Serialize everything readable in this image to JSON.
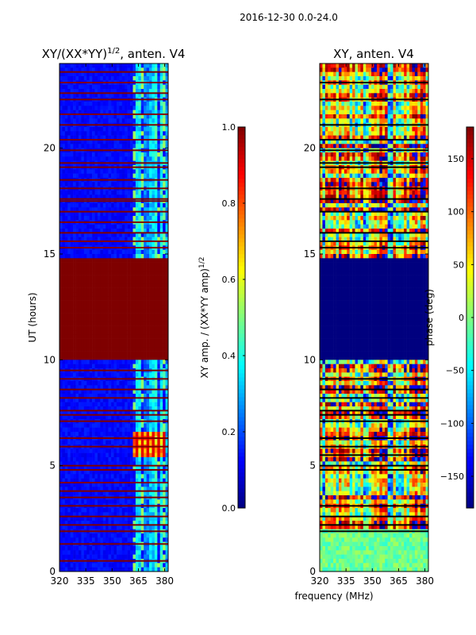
{
  "figure": {
    "suptitle": "2016-12-30 0.0-24.0"
  },
  "colors": {
    "jet": [
      "#00007f",
      "#0000ff",
      "#007fff",
      "#00ffff",
      "#7fff7f",
      "#ffff00",
      "#ff7f00",
      "#ff0000",
      "#7f0000"
    ]
  },
  "chart_data": [
    {
      "type": "heatmap",
      "title_main": "XY/(XX*YY)",
      "title_sup": "1/2",
      "title_tail": ", anten. V4",
      "xlabel": "",
      "ylabel": "UT (hours)",
      "xlim": [
        320,
        382
      ],
      "ylim": [
        0,
        24
      ],
      "xticks": [
        "320",
        "335",
        "350",
        "365",
        "380"
      ],
      "yticks": [
        "0",
        "5",
        "10",
        "15",
        "20"
      ],
      "ytick_values": [
        0,
        5,
        10,
        15,
        20
      ],
      "colorbar": {
        "label_main": "XY amp. / (XX*YY amp)",
        "label_sup": "1/2",
        "range": [
          0.0,
          1.0
        ],
        "ticks": [
          "0.0",
          "0.2",
          "0.4",
          "0.6",
          "0.8",
          "1.0"
        ],
        "tick_values": [
          0.0,
          0.2,
          0.4,
          0.6,
          0.8,
          1.0
        ]
      },
      "saturated_band_hours": [
        9.9,
        14.8
      ],
      "saturated_value": 1.0,
      "active_band_mhz": [
        362,
        382
      ],
      "bright_patch": {
        "hours": [
          5.5,
          6.6
        ],
        "mhz": [
          362,
          381
        ],
        "value": 0.9
      },
      "flagged_rows_hours": [
        0.5,
        1.3,
        1.9,
        2.2,
        2.6,
        3.1,
        3.5,
        3.8,
        4.2,
        4.8,
        5.0,
        5.9,
        6.3,
        7.1,
        7.4,
        7.6,
        8.2,
        8.6,
        9.1,
        9.5,
        15.3,
        15.6,
        16.0,
        16.5,
        17.0,
        17.5,
        17.6,
        18.1,
        18.5,
        19.1,
        19.3,
        19.9,
        20.4,
        21.1,
        21.6,
        22.3,
        22.6,
        23.1,
        23.6
      ]
    },
    {
      "type": "heatmap",
      "title": "XY, anten. V4",
      "xlabel": "frequency (MHz)",
      "ylabel": "",
      "xlim": [
        320,
        382
      ],
      "ylim": [
        0,
        24
      ],
      "xticks": [
        "320",
        "335",
        "350",
        "365",
        "380"
      ],
      "yticks": [
        "0",
        "5",
        "10",
        "15",
        "20"
      ],
      "ytick_values": [
        0,
        5,
        10,
        15,
        20
      ],
      "colorbar": {
        "label": "phase (deg)",
        "range": [
          -180,
          180
        ],
        "ticks": [
          "−150",
          "−100",
          "−50",
          "0",
          "50",
          "100",
          "150"
        ],
        "tick_values": [
          -150,
          -100,
          -50,
          0,
          50,
          100,
          150
        ]
      },
      "saturated_band_hours": [
        9.9,
        14.8
      ],
      "saturated_value": -180,
      "flagged_rows_hours": [
        1.9,
        2.2,
        2.6,
        3.1,
        4.8,
        5.0,
        5.5,
        5.9,
        6.3,
        7.1,
        7.4,
        7.6,
        8.2,
        8.6,
        9.1,
        15.3,
        15.6,
        16.0,
        17.0,
        17.6,
        18.1,
        19.1,
        19.3,
        19.9,
        20.4,
        21.1,
        22.3,
        23.1
      ]
    }
  ]
}
